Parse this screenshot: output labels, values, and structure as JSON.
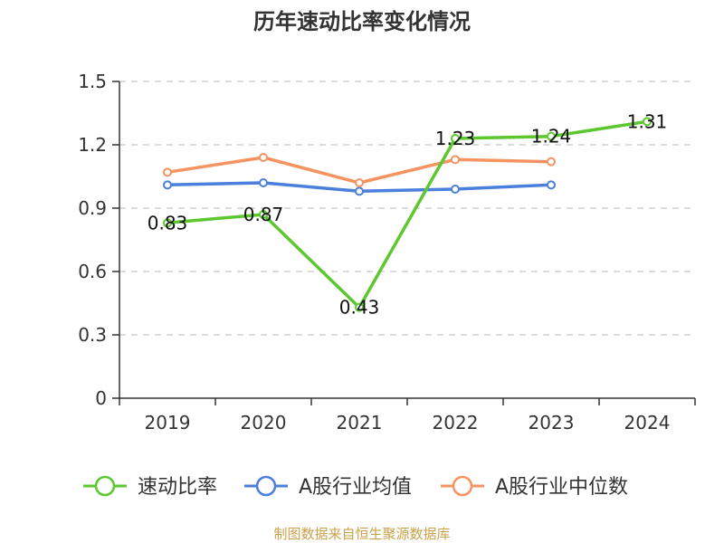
{
  "chart_data": {
    "type": "line",
    "title": "历年速动比率变化情况",
    "categories": [
      "2019",
      "2020",
      "2021",
      "2022",
      "2023",
      "2024"
    ],
    "y_ticks": [
      "0",
      "0.3",
      "0.6",
      "0.9",
      "1.2",
      "1.5"
    ],
    "ylim": [
      0,
      1.5
    ],
    "grid": true,
    "legend_position": "bottom",
    "series": [
      {
        "name": "速动比率",
        "color": "#5cc72e",
        "values": [
          0.83,
          0.87,
          0.43,
          1.23,
          1.24,
          1.31
        ],
        "labels": [
          "0.83",
          "0.87",
          "0.43",
          "1.23",
          "1.24",
          "1.31"
        ]
      },
      {
        "name": "A股行业均值",
        "color": "#4a7fdc",
        "values": [
          1.01,
          1.02,
          0.98,
          0.99,
          1.01,
          null
        ]
      },
      {
        "name": "A股行业中位数",
        "color": "#f59461",
        "values": [
          1.07,
          1.14,
          1.02,
          1.13,
          1.12,
          null
        ]
      }
    ]
  },
  "source_text": "制图数据来自恒生聚源数据库"
}
